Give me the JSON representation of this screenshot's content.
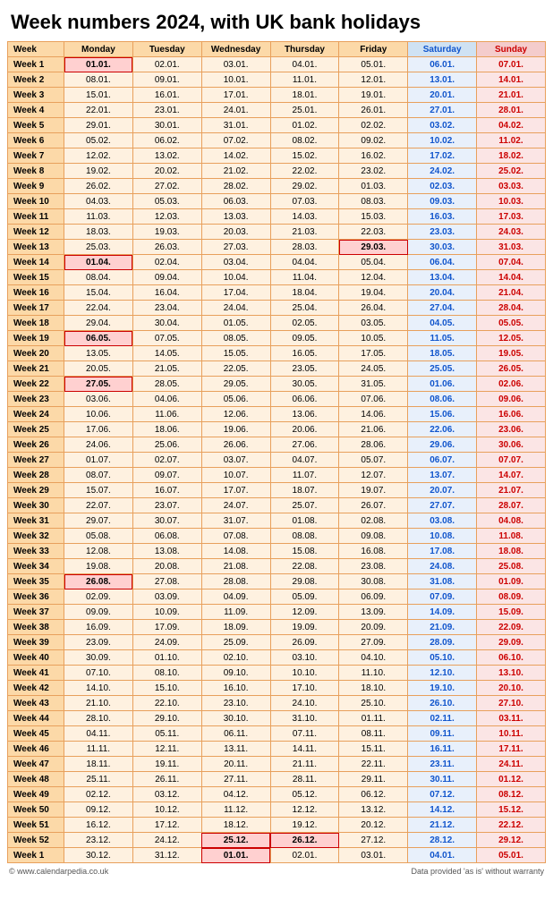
{
  "title": "Week numbers 2024, with UK bank holidays",
  "columns": [
    "Week",
    "Monday",
    "Tuesday",
    "Wednesday",
    "Thursday",
    "Friday",
    "Saturday",
    "Sunday"
  ],
  "header_bg": [
    "#fcd9a8",
    "#fcd9a8",
    "#fcd9a8",
    "#fcd9a8",
    "#fcd9a8",
    "#fcd9a8",
    "#cfe2f3",
    "#f4cccc"
  ],
  "header_fg": [
    "#000000",
    "#000000",
    "#000000",
    "#000000",
    "#000000",
    "#000000",
    "#1155cc",
    "#cc0000"
  ],
  "weekday_bg": "#fef1e0",
  "weekday_fg": "#000000",
  "sat_bg": "#e8f0fb",
  "sat_fg": "#1155cc",
  "sun_bg": "#fbe5e5",
  "sun_fg": "#cc0000",
  "wkcol_bg": "#fcd9a8",
  "wkcol_fg": "#000000",
  "footer_left": "© www.calendarpedia.co.uk",
  "footer_right": "Data provided 'as is' without warranty",
  "rows": [
    {
      "wk": "Week 1",
      "d": [
        "01.01.",
        "02.01.",
        "03.01.",
        "04.01.",
        "05.01.",
        "06.01.",
        "07.01."
      ],
      "hol": [
        0
      ]
    },
    {
      "wk": "Week 2",
      "d": [
        "08.01.",
        "09.01.",
        "10.01.",
        "11.01.",
        "12.01.",
        "13.01.",
        "14.01."
      ],
      "hol": []
    },
    {
      "wk": "Week 3",
      "d": [
        "15.01.",
        "16.01.",
        "17.01.",
        "18.01.",
        "19.01.",
        "20.01.",
        "21.01."
      ],
      "hol": []
    },
    {
      "wk": "Week 4",
      "d": [
        "22.01.",
        "23.01.",
        "24.01.",
        "25.01.",
        "26.01.",
        "27.01.",
        "28.01."
      ],
      "hol": []
    },
    {
      "wk": "Week 5",
      "d": [
        "29.01.",
        "30.01.",
        "31.01.",
        "01.02.",
        "02.02.",
        "03.02.",
        "04.02."
      ],
      "hol": []
    },
    {
      "wk": "Week 6",
      "d": [
        "05.02.",
        "06.02.",
        "07.02.",
        "08.02.",
        "09.02.",
        "10.02.",
        "11.02."
      ],
      "hol": []
    },
    {
      "wk": "Week 7",
      "d": [
        "12.02.",
        "13.02.",
        "14.02.",
        "15.02.",
        "16.02.",
        "17.02.",
        "18.02."
      ],
      "hol": []
    },
    {
      "wk": "Week 8",
      "d": [
        "19.02.",
        "20.02.",
        "21.02.",
        "22.02.",
        "23.02.",
        "24.02.",
        "25.02."
      ],
      "hol": []
    },
    {
      "wk": "Week 9",
      "d": [
        "26.02.",
        "27.02.",
        "28.02.",
        "29.02.",
        "01.03.",
        "02.03.",
        "03.03."
      ],
      "hol": []
    },
    {
      "wk": "Week 10",
      "d": [
        "04.03.",
        "05.03.",
        "06.03.",
        "07.03.",
        "08.03.",
        "09.03.",
        "10.03."
      ],
      "hol": []
    },
    {
      "wk": "Week 11",
      "d": [
        "11.03.",
        "12.03.",
        "13.03.",
        "14.03.",
        "15.03.",
        "16.03.",
        "17.03."
      ],
      "hol": []
    },
    {
      "wk": "Week 12",
      "d": [
        "18.03.",
        "19.03.",
        "20.03.",
        "21.03.",
        "22.03.",
        "23.03.",
        "24.03."
      ],
      "hol": []
    },
    {
      "wk": "Week 13",
      "d": [
        "25.03.",
        "26.03.",
        "27.03.",
        "28.03.",
        "29.03.",
        "30.03.",
        "31.03."
      ],
      "hol": [
        4
      ]
    },
    {
      "wk": "Week 14",
      "d": [
        "01.04.",
        "02.04.",
        "03.04.",
        "04.04.",
        "05.04.",
        "06.04.",
        "07.04."
      ],
      "hol": [
        0
      ]
    },
    {
      "wk": "Week 15",
      "d": [
        "08.04.",
        "09.04.",
        "10.04.",
        "11.04.",
        "12.04.",
        "13.04.",
        "14.04."
      ],
      "hol": []
    },
    {
      "wk": "Week 16",
      "d": [
        "15.04.",
        "16.04.",
        "17.04.",
        "18.04.",
        "19.04.",
        "20.04.",
        "21.04."
      ],
      "hol": []
    },
    {
      "wk": "Week 17",
      "d": [
        "22.04.",
        "23.04.",
        "24.04.",
        "25.04.",
        "26.04.",
        "27.04.",
        "28.04."
      ],
      "hol": []
    },
    {
      "wk": "Week 18",
      "d": [
        "29.04.",
        "30.04.",
        "01.05.",
        "02.05.",
        "03.05.",
        "04.05.",
        "05.05."
      ],
      "hol": []
    },
    {
      "wk": "Week 19",
      "d": [
        "06.05.",
        "07.05.",
        "08.05.",
        "09.05.",
        "10.05.",
        "11.05.",
        "12.05."
      ],
      "hol": [
        0
      ]
    },
    {
      "wk": "Week 20",
      "d": [
        "13.05.",
        "14.05.",
        "15.05.",
        "16.05.",
        "17.05.",
        "18.05.",
        "19.05."
      ],
      "hol": []
    },
    {
      "wk": "Week 21",
      "d": [
        "20.05.",
        "21.05.",
        "22.05.",
        "23.05.",
        "24.05.",
        "25.05.",
        "26.05."
      ],
      "hol": []
    },
    {
      "wk": "Week 22",
      "d": [
        "27.05.",
        "28.05.",
        "29.05.",
        "30.05.",
        "31.05.",
        "01.06.",
        "02.06."
      ],
      "hol": [
        0
      ]
    },
    {
      "wk": "Week 23",
      "d": [
        "03.06.",
        "04.06.",
        "05.06.",
        "06.06.",
        "07.06.",
        "08.06.",
        "09.06."
      ],
      "hol": []
    },
    {
      "wk": "Week 24",
      "d": [
        "10.06.",
        "11.06.",
        "12.06.",
        "13.06.",
        "14.06.",
        "15.06.",
        "16.06."
      ],
      "hol": []
    },
    {
      "wk": "Week 25",
      "d": [
        "17.06.",
        "18.06.",
        "19.06.",
        "20.06.",
        "21.06.",
        "22.06.",
        "23.06."
      ],
      "hol": []
    },
    {
      "wk": "Week 26",
      "d": [
        "24.06.",
        "25.06.",
        "26.06.",
        "27.06.",
        "28.06.",
        "29.06.",
        "30.06."
      ],
      "hol": []
    },
    {
      "wk": "Week 27",
      "d": [
        "01.07.",
        "02.07.",
        "03.07.",
        "04.07.",
        "05.07.",
        "06.07.",
        "07.07."
      ],
      "hol": []
    },
    {
      "wk": "Week 28",
      "d": [
        "08.07.",
        "09.07.",
        "10.07.",
        "11.07.",
        "12.07.",
        "13.07.",
        "14.07."
      ],
      "hol": []
    },
    {
      "wk": "Week 29",
      "d": [
        "15.07.",
        "16.07.",
        "17.07.",
        "18.07.",
        "19.07.",
        "20.07.",
        "21.07."
      ],
      "hol": []
    },
    {
      "wk": "Week 30",
      "d": [
        "22.07.",
        "23.07.",
        "24.07.",
        "25.07.",
        "26.07.",
        "27.07.",
        "28.07."
      ],
      "hol": []
    },
    {
      "wk": "Week 31",
      "d": [
        "29.07.",
        "30.07.",
        "31.07.",
        "01.08.",
        "02.08.",
        "03.08.",
        "04.08."
      ],
      "hol": []
    },
    {
      "wk": "Week 32",
      "d": [
        "05.08.",
        "06.08.",
        "07.08.",
        "08.08.",
        "09.08.",
        "10.08.",
        "11.08."
      ],
      "hol": []
    },
    {
      "wk": "Week 33",
      "d": [
        "12.08.",
        "13.08.",
        "14.08.",
        "15.08.",
        "16.08.",
        "17.08.",
        "18.08."
      ],
      "hol": []
    },
    {
      "wk": "Week 34",
      "d": [
        "19.08.",
        "20.08.",
        "21.08.",
        "22.08.",
        "23.08.",
        "24.08.",
        "25.08."
      ],
      "hol": []
    },
    {
      "wk": "Week 35",
      "d": [
        "26.08.",
        "27.08.",
        "28.08.",
        "29.08.",
        "30.08.",
        "31.08.",
        "01.09."
      ],
      "hol": [
        0
      ]
    },
    {
      "wk": "Week 36",
      "d": [
        "02.09.",
        "03.09.",
        "04.09.",
        "05.09.",
        "06.09.",
        "07.09.",
        "08.09."
      ],
      "hol": []
    },
    {
      "wk": "Week 37",
      "d": [
        "09.09.",
        "10.09.",
        "11.09.",
        "12.09.",
        "13.09.",
        "14.09.",
        "15.09."
      ],
      "hol": []
    },
    {
      "wk": "Week 38",
      "d": [
        "16.09.",
        "17.09.",
        "18.09.",
        "19.09.",
        "20.09.",
        "21.09.",
        "22.09."
      ],
      "hol": []
    },
    {
      "wk": "Week 39",
      "d": [
        "23.09.",
        "24.09.",
        "25.09.",
        "26.09.",
        "27.09.",
        "28.09.",
        "29.09."
      ],
      "hol": []
    },
    {
      "wk": "Week 40",
      "d": [
        "30.09.",
        "01.10.",
        "02.10.",
        "03.10.",
        "04.10.",
        "05.10.",
        "06.10."
      ],
      "hol": []
    },
    {
      "wk": "Week 41",
      "d": [
        "07.10.",
        "08.10.",
        "09.10.",
        "10.10.",
        "11.10.",
        "12.10.",
        "13.10."
      ],
      "hol": []
    },
    {
      "wk": "Week 42",
      "d": [
        "14.10.",
        "15.10.",
        "16.10.",
        "17.10.",
        "18.10.",
        "19.10.",
        "20.10."
      ],
      "hol": []
    },
    {
      "wk": "Week 43",
      "d": [
        "21.10.",
        "22.10.",
        "23.10.",
        "24.10.",
        "25.10.",
        "26.10.",
        "27.10."
      ],
      "hol": []
    },
    {
      "wk": "Week 44",
      "d": [
        "28.10.",
        "29.10.",
        "30.10.",
        "31.10.",
        "01.11.",
        "02.11.",
        "03.11."
      ],
      "hol": []
    },
    {
      "wk": "Week 45",
      "d": [
        "04.11.",
        "05.11.",
        "06.11.",
        "07.11.",
        "08.11.",
        "09.11.",
        "10.11."
      ],
      "hol": []
    },
    {
      "wk": "Week 46",
      "d": [
        "11.11.",
        "12.11.",
        "13.11.",
        "14.11.",
        "15.11.",
        "16.11.",
        "17.11."
      ],
      "hol": []
    },
    {
      "wk": "Week 47",
      "d": [
        "18.11.",
        "19.11.",
        "20.11.",
        "21.11.",
        "22.11.",
        "23.11.",
        "24.11."
      ],
      "hol": []
    },
    {
      "wk": "Week 48",
      "d": [
        "25.11.",
        "26.11.",
        "27.11.",
        "28.11.",
        "29.11.",
        "30.11.",
        "01.12."
      ],
      "hol": []
    },
    {
      "wk": "Week 49",
      "d": [
        "02.12.",
        "03.12.",
        "04.12.",
        "05.12.",
        "06.12.",
        "07.12.",
        "08.12."
      ],
      "hol": []
    },
    {
      "wk": "Week 50",
      "d": [
        "09.12.",
        "10.12.",
        "11.12.",
        "12.12.",
        "13.12.",
        "14.12.",
        "15.12."
      ],
      "hol": []
    },
    {
      "wk": "Week 51",
      "d": [
        "16.12.",
        "17.12.",
        "18.12.",
        "19.12.",
        "20.12.",
        "21.12.",
        "22.12."
      ],
      "hol": []
    },
    {
      "wk": "Week 52",
      "d": [
        "23.12.",
        "24.12.",
        "25.12.",
        "26.12.",
        "27.12.",
        "28.12.",
        "29.12."
      ],
      "hol": [
        2,
        3
      ]
    },
    {
      "wk": "Week 1",
      "d": [
        "30.12.",
        "31.12.",
        "01.01.",
        "02.01.",
        "03.01.",
        "04.01.",
        "05.01."
      ],
      "hol": [
        2
      ]
    }
  ]
}
